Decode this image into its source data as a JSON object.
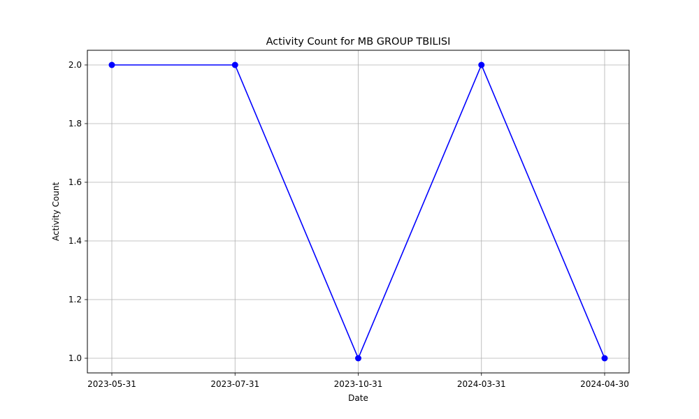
{
  "chart_data": {
    "type": "line",
    "title": "Activity Count for MB GROUP TBILISI",
    "xlabel": "Date",
    "ylabel": "Activity Count",
    "categories": [
      "2023-05-31",
      "2023-07-31",
      "2023-10-31",
      "2024-03-31",
      "2024-04-30"
    ],
    "series": [
      {
        "values": [
          2,
          2,
          1,
          2,
          1
        ],
        "color": "#0000ff",
        "marker": "circle"
      }
    ],
    "yticks": [
      "1.0",
      "1.2",
      "1.4",
      "1.6",
      "1.8",
      "2.0"
    ],
    "ylim": [
      0.95,
      2.05
    ],
    "grid": true,
    "gridColor": "#b0b0b0",
    "legend": "none"
  }
}
